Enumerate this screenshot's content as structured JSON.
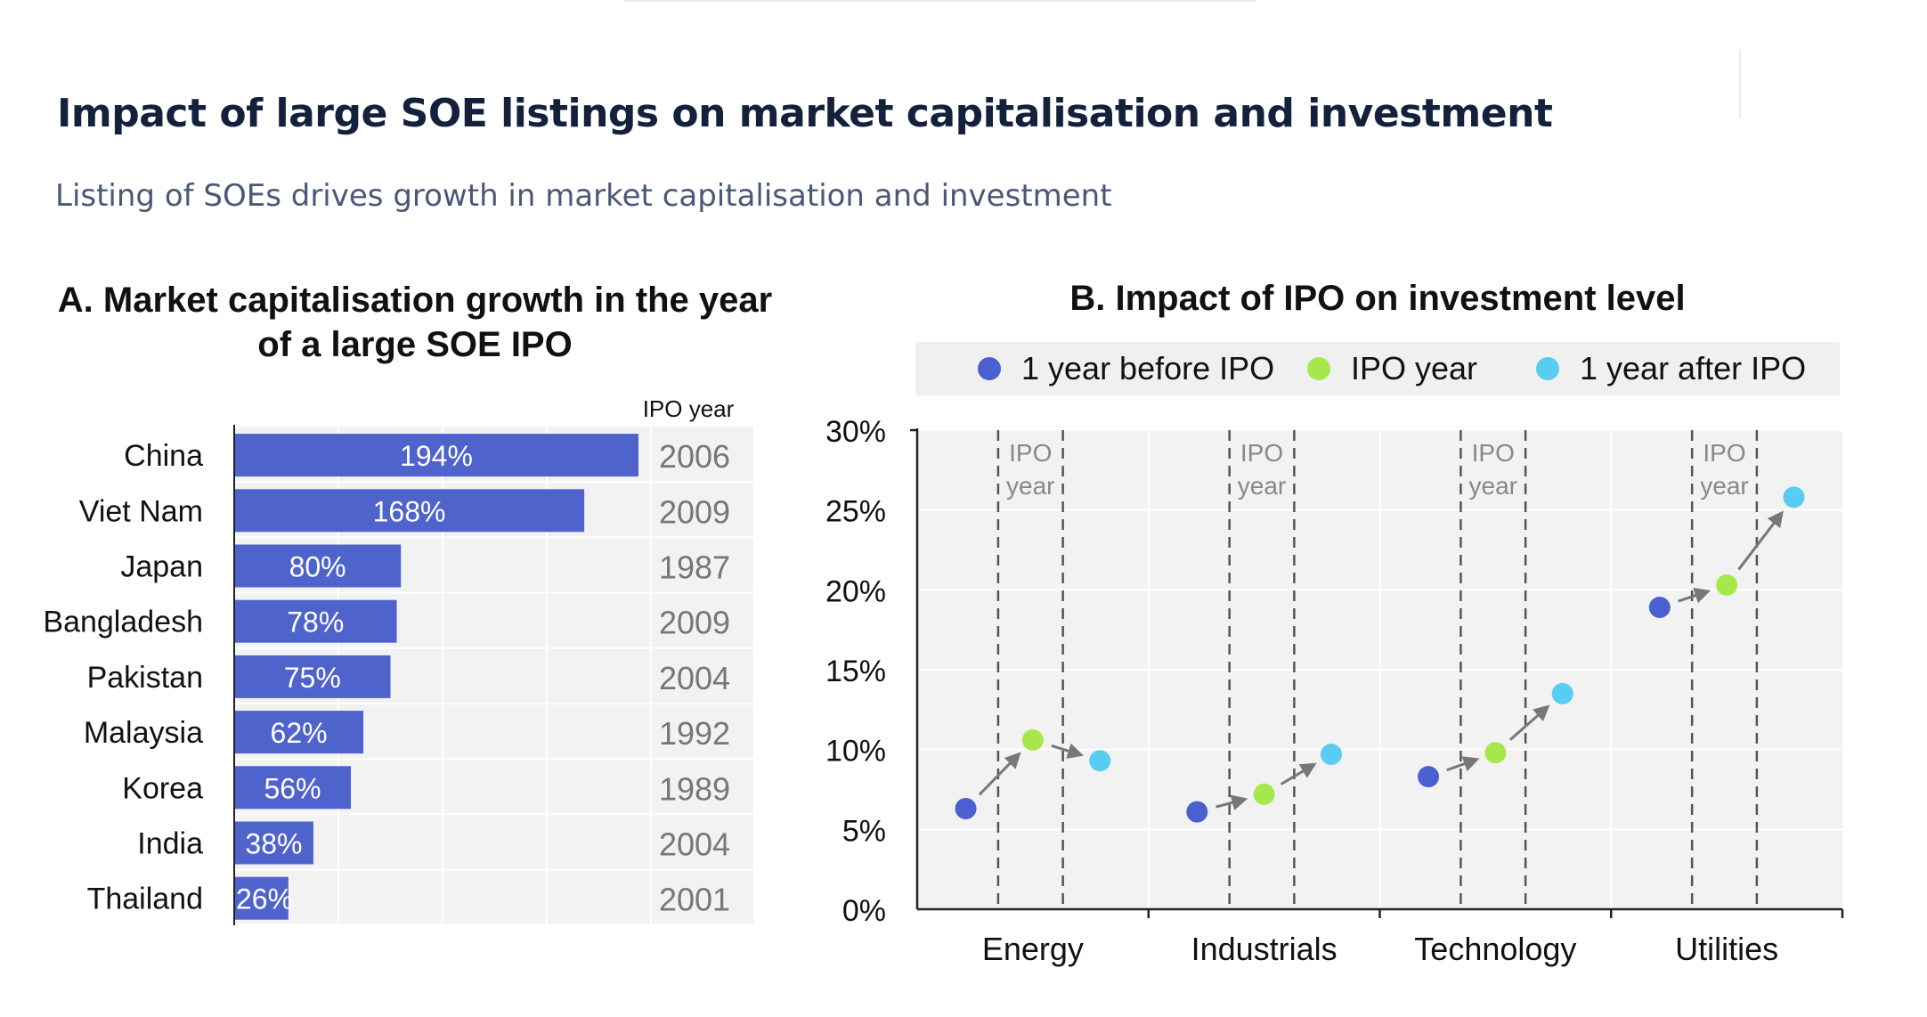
{
  "header": {
    "title": "Impact of large SOE listings on market capitalisation and  investment",
    "subtitle": "Listing of SOEs drives growth in market capitalisation and investment"
  },
  "chart_data": [
    {
      "type": "bar",
      "orientation": "horizontal",
      "title": "A. Market capitalisation growth in the year of a large SOE IPO",
      "title_lines": [
        "A. Market capitalisation growth in the year",
        "of a large SOE IPO"
      ],
      "categories": [
        "China",
        "Viet Nam",
        "Japan",
        "Bangladesh",
        "Pakistan",
        "Malaysia",
        "Korea",
        "India",
        "Thailand"
      ],
      "values": [
        194,
        168,
        80,
        78,
        75,
        62,
        56,
        38,
        26
      ],
      "data_labels": [
        "194%",
        "168%",
        "80%",
        "78%",
        "75%",
        "62%",
        "56%",
        "38%",
        "26%"
      ],
      "side_column_header": "IPO year",
      "ipo_years": [
        "2006",
        "2009",
        "1987",
        "2009",
        "2004",
        "1992",
        "1989",
        "2004",
        "2001"
      ],
      "xlim": [
        0,
        200
      ],
      "grid": true,
      "color": "#4f63cc"
    },
    {
      "type": "scatter",
      "title": "B. Impact of IPO on investment level",
      "categories": [
        "Energy",
        "Industrials",
        "Technology",
        "Utilities"
      ],
      "series": [
        {
          "name": "1 year before IPO",
          "color": "#4a5fd0",
          "values": [
            6.3,
            6.1,
            8.3,
            18.9
          ]
        },
        {
          "name": "IPO year",
          "color": "#a6e84c",
          "values": [
            10.6,
            7.2,
            9.8,
            20.3
          ]
        },
        {
          "name": "1 year after IPO",
          "color": "#58cdf2",
          "values": [
            9.3,
            9.7,
            13.5,
            25.8
          ]
        }
      ],
      "annotation": [
        "IPO",
        "year"
      ],
      "ylim": [
        0,
        30
      ],
      "yticks": [
        "0%",
        "5%",
        "10%",
        "15%",
        "20%",
        "25%",
        "30%"
      ],
      "legend": "top",
      "grid": true
    }
  ]
}
